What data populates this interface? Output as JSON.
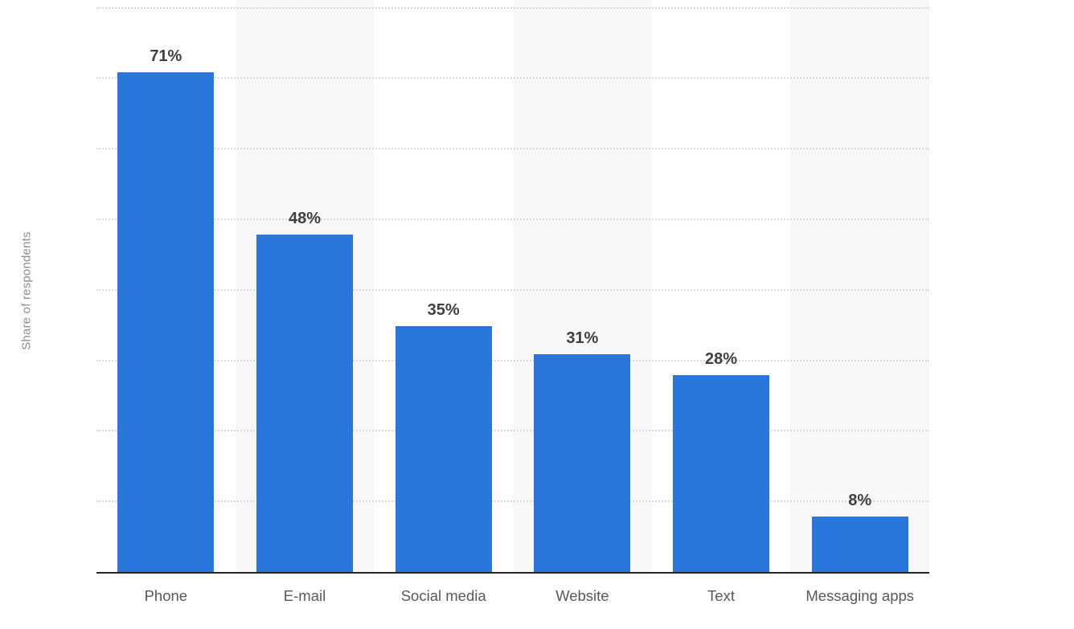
{
  "chart_data": {
    "type": "bar",
    "categories": [
      "Phone",
      "E-mail",
      "Social media",
      "Website",
      "Text",
      "Messaging apps"
    ],
    "values": [
      71,
      48,
      35,
      31,
      28,
      8
    ],
    "value_labels": [
      "71%",
      "48%",
      "35%",
      "31%",
      "28%",
      "8%"
    ],
    "value_suffix": "%",
    "title": "",
    "xlabel": "",
    "ylabel": "Share of respondents",
    "ylim": [
      0,
      80
    ],
    "gridline_percents": [
      10,
      20,
      30,
      40,
      50,
      60,
      70,
      80
    ],
    "grid_style": "dotted-horizontal",
    "legend": "none",
    "band_pattern": "alternating columns, gray on even columns (E-mail, Website, Messaging apps)",
    "colors": {
      "bar": "#2b76dc",
      "column_band": "#f7f7f7",
      "gridline": "#d9d9d9",
      "axis_line": "#262626",
      "value_label": "#404040",
      "tick_label": "#58585a",
      "y_axis_label": "#8d8d8d",
      "background": "#ffffff"
    }
  }
}
